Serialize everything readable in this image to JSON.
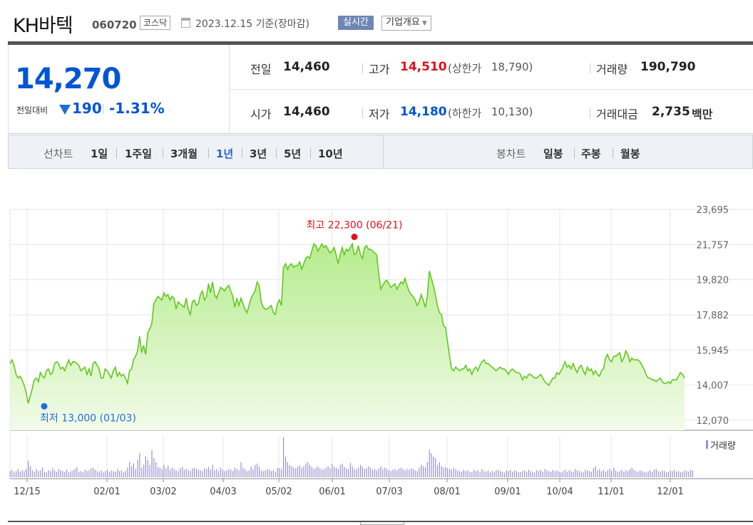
{
  "header": {
    "company": "KH바텍",
    "code": "060720",
    "market": "코스닥",
    "date_basis": "2023.12.15 기준(장마감)",
    "realtime_label": "실시간",
    "profile_label": "기업개요",
    "calendar_icon": "calendar-icon"
  },
  "quote": {
    "price": "14,270",
    "change_label": "전일대비",
    "change_dir": "down",
    "change": "190",
    "change_pct": "-1.31%",
    "prev_close_label": "전일",
    "prev_close": "14,460",
    "high_label": "고가",
    "high": "14,510",
    "upper_limit_label": "(상한가",
    "upper_limit": "18,790)",
    "volume_label": "거래량",
    "volume": "190,790",
    "open_label": "시가",
    "open": "14,460",
    "low_label": "저가",
    "low": "14,180",
    "lower_limit_label": "(하한가",
    "lower_limit": "10,130)",
    "amount_label": "거래대금",
    "amount": "2,735",
    "amount_unit": "백만",
    "colors": {
      "up": "#e0101b",
      "down": "#0055d7"
    }
  },
  "nav": {
    "line_label": "선차트",
    "line_periods": [
      "1일",
      "1주일",
      "3개월",
      "1년",
      "3년",
      "5년",
      "10년"
    ],
    "selected": "1년",
    "candle_label": "봉차트",
    "candle_periods": [
      "일봉",
      "주봉",
      "월봉"
    ]
  },
  "chart_data": {
    "type": "area",
    "y_ticks": [
      "23,695",
      "21,757",
      "19,820",
      "17,882",
      "15,945",
      "14,007",
      "12,070"
    ],
    "y_tick_values": [
      23695,
      21757,
      19820,
      17882,
      15945,
      14007,
      12070
    ],
    "ylim": [
      12070,
      23695
    ],
    "x_ticks": [
      "12/15",
      "02/01",
      "03/02",
      "04/03",
      "05/02",
      "06/01",
      "07/03",
      "08/01",
      "09/01",
      "10/04",
      "11/01",
      "12/01"
    ],
    "high_annotation": "최고 22,300 (06/21)",
    "low_annotation": "최저 13,000 (01/03)",
    "high_value": 22300,
    "low_value": 13000,
    "volume_legend": "거래량",
    "colors": {
      "line": "#62c81f",
      "fill_top": "#b6ec8e",
      "fill_bottom": "#f2fbe9",
      "volume": "#9b8fcc",
      "high": "#e0101b",
      "low": "#1d6fd8"
    },
    "prices": [
      15200,
      15400,
      15100,
      14600,
      14400,
      14500,
      14300,
      14000,
      13600,
      13000,
      13400,
      13800,
      14300,
      14400,
      14200,
      14700,
      14500,
      14400,
      14800,
      14900,
      14600,
      14700,
      15200,
      15300,
      15200,
      14900,
      15000,
      14800,
      15100,
      15400,
      15100,
      15300,
      15300,
      15200,
      15100,
      14800,
      14900,
      15000,
      14600,
      14900,
      14500,
      15200,
      15300,
      15100,
      14900,
      14400,
      14400,
      14900,
      14800,
      14600,
      14400,
      14800,
      15000,
      14500,
      14700,
      14500,
      14600,
      14400,
      14100,
      14800,
      14900,
      15400,
      15600,
      15900,
      16700,
      15800,
      16200,
      15700,
      16900,
      17100,
      17400,
      18500,
      18700,
      18900,
      18800,
      18700,
      19100,
      18900,
      19000,
      18700,
      18900,
      18800,
      18200,
      18600,
      18500,
      18400,
      18300,
      18800,
      18200,
      17900,
      18600,
      18700,
      18400,
      18500,
      19000,
      19200,
      18700,
      18900,
      19600,
      19100,
      19700,
      19000,
      18800,
      19100,
      19400,
      19300,
      19200,
      19400,
      19500,
      19200,
      18900,
      18300,
      18800,
      18400,
      18800,
      18500,
      18200,
      18000,
      18400,
      18800,
      19000,
      19200,
      19700,
      19500,
      18600,
      18300,
      18200,
      18200,
      18300,
      18400,
      18000,
      17900,
      18500,
      18700,
      18400,
      20500,
      20700,
      20400,
      20600,
      20700,
      20500,
      20600,
      20600,
      20800,
      20400,
      20700,
      21000,
      21100,
      21000,
      21400,
      21800,
      21700,
      21400,
      21600,
      21800,
      21600,
      21700,
      21500,
      21300,
      21400,
      21600,
      21200,
      20700,
      21200,
      21600,
      21200,
      21500,
      21400,
      21600,
      21800,
      21200,
      21300,
      21700,
      21200,
      21000,
      21600,
      21700,
      21500,
      21500,
      21400,
      21300,
      21200,
      20200,
      19300,
      19500,
      19700,
      19800,
      19600,
      19400,
      19500,
      19600,
      19300,
      19500,
      19700,
      19600,
      19900,
      19500,
      19200,
      19000,
      18900,
      18700,
      18400,
      18600,
      19000,
      18700,
      18300,
      18900,
      20300,
      19900,
      19500,
      19000,
      18400,
      18000,
      17900,
      17300,
      17200,
      16400,
      15600,
      14900,
      14800,
      15000,
      14900,
      14800,
      14900,
      14900,
      15100,
      14800,
      14900,
      14600,
      14900,
      15000,
      14800,
      15100,
      15300,
      15400,
      15200,
      15200,
      15100,
      15000,
      14900,
      14800,
      14900,
      15000,
      14900,
      14900,
      14800,
      14600,
      14800,
      14900,
      14800,
      14700,
      14700,
      14600,
      14300,
      14500,
      14400,
      14600,
      14600,
      14500,
      14400,
      14400,
      14500,
      14600,
      14400,
      14200,
      14100,
      14000,
      14200,
      14400,
      14400,
      14700,
      14600,
      14800,
      15000,
      15300,
      15000,
      15100,
      14900,
      15200,
      14900,
      14700,
      15000,
      15100,
      14800,
      14600,
      15000,
      14800,
      14900,
      14600,
      14800,
      14600,
      14500,
      14800,
      14900,
      15500,
      15700,
      15400,
      15300,
      15600,
      15600,
      15700,
      15800,
      15300,
      15500,
      15900,
      15700,
      15300,
      15500,
      15400,
      15400,
      15400,
      15300,
      15100,
      14900,
      14600,
      14400,
      14400,
      14300,
      14300,
      14200,
      14300,
      14400,
      14200,
      14100,
      14100,
      14200,
      14100,
      14300,
      14300,
      14300,
      14500,
      14700,
      14600,
      14400
    ],
    "volumes": [
      9,
      11,
      7,
      9,
      12,
      8,
      10,
      9,
      12,
      24,
      16,
      10,
      8,
      12,
      9,
      10,
      14,
      8,
      7,
      10,
      9,
      13,
      10,
      8,
      12,
      10,
      9,
      8,
      11,
      7,
      9,
      10,
      12,
      15,
      8,
      9,
      7,
      11,
      9,
      10,
      13,
      14,
      11,
      9,
      8,
      10,
      7,
      9,
      11,
      8,
      10,
      9,
      8,
      12,
      9,
      10,
      7,
      9,
      14,
      22,
      16,
      20,
      12,
      25,
      35,
      14,
      18,
      30,
      25,
      18,
      40,
      28,
      22,
      15,
      14,
      12,
      18,
      13,
      17,
      11,
      14,
      12,
      10,
      9,
      13,
      15,
      11,
      12,
      10,
      9,
      13,
      14,
      12,
      11,
      10,
      9,
      13,
      12,
      15,
      11,
      18,
      10,
      12,
      9,
      14,
      11,
      9,
      10,
      12,
      11,
      9,
      14,
      12,
      10,
      22,
      14,
      12,
      9,
      10,
      16,
      12,
      18,
      20,
      15,
      10,
      9,
      10,
      12,
      11,
      9,
      10,
      8,
      14,
      13,
      12,
      58,
      30,
      22,
      18,
      16,
      14,
      13,
      15,
      17,
      14,
      16,
      20,
      22,
      18,
      15,
      12,
      14,
      16,
      13,
      11,
      12,
      14,
      16,
      13,
      19,
      15,
      14,
      12,
      18,
      20,
      15,
      13,
      12,
      21,
      16,
      12,
      12,
      14,
      18,
      15,
      12,
      13,
      16,
      14,
      11,
      12,
      10,
      13,
      16,
      12,
      14,
      12,
      10,
      9,
      11,
      12,
      10,
      13,
      14,
      12,
      10,
      12,
      11,
      13,
      12,
      10,
      9,
      14,
      18,
      16,
      15,
      22,
      40,
      35,
      30,
      28,
      18,
      22,
      16,
      14,
      15,
      13,
      12,
      11,
      14,
      12,
      10,
      9,
      8,
      11,
      9,
      10,
      8,
      7,
      11,
      9,
      10,
      8,
      12,
      9,
      8,
      10,
      7,
      9,
      8,
      10,
      11,
      9,
      8,
      7,
      10,
      9,
      11,
      8,
      10,
      9,
      7,
      8,
      9,
      10,
      8,
      11,
      9,
      8,
      7,
      10,
      9,
      11,
      8,
      12,
      10,
      9,
      8,
      11,
      9,
      10,
      8,
      7,
      9,
      11,
      8,
      10,
      9,
      8,
      12,
      10,
      9,
      8,
      7,
      11,
      10,
      9,
      8,
      13,
      16,
      10,
      12,
      9,
      11,
      8,
      10,
      12,
      9,
      14,
      10,
      8,
      9,
      11,
      8,
      10,
      9,
      12,
      14,
      11,
      9,
      8,
      10,
      9,
      8,
      7,
      9,
      10,
      8,
      11,
      12,
      9,
      8,
      10,
      9,
      7,
      8,
      10,
      9,
      11,
      8,
      9,
      7,
      8,
      10,
      9,
      8,
      11,
      10
    ]
  }
}
